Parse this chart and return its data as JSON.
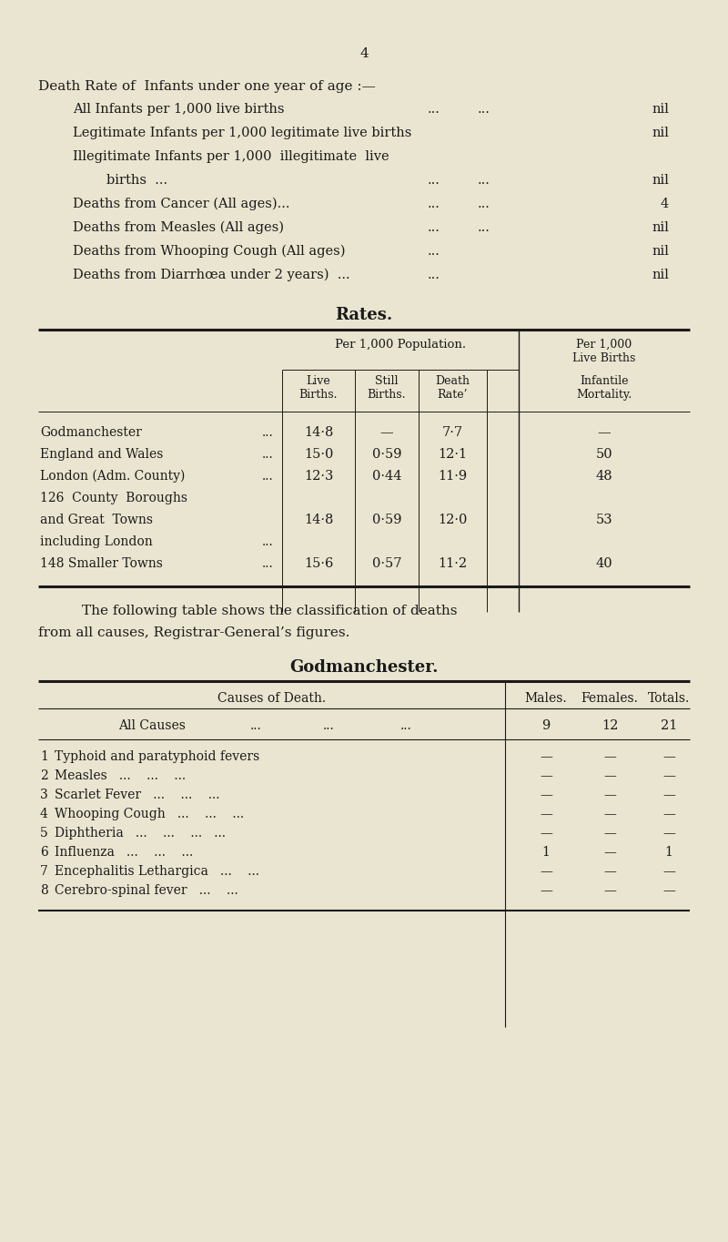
{
  "bg_color": "#EAE5D0",
  "text_color": "#1a1a1a",
  "page_number": "4",
  "section1_title": "Death Rate of  Infants under one year of age :—",
  "rates_title": "Rates.",
  "rates_header1": "Per 1,000 Population.",
  "rates_header2": "Per 1,000\nLive Births",
  "rates_col_headers": [
    "Live\nBirths.",
    "Still\nBirths.",
    "Death\nRate’",
    "Infantile\nMortality."
  ],
  "rates_rows": [
    [
      "Godmanchester",
      "14·8",
      "—",
      "7·7",
      "—"
    ],
    [
      "England and Wales",
      "15·0",
      "0·59",
      "12·1",
      "50"
    ],
    [
      "London (Adm. County)",
      "12·3",
      "0·44",
      "11·9",
      "48"
    ],
    [
      "126  County  Boroughs\nand Great  Towns\nincluding London",
      "14·8",
      "0·59",
      "12·0",
      "53"
    ],
    [
      "148 Smaller Towns",
      "15·6",
      "0·57",
      "11·2",
      "40"
    ]
  ],
  "following_text1": "The following table shows the classification of deaths",
  "following_text2": "from all causes, Registrar-General’s figures.",
  "godmanchester_title": "Godmanchester.",
  "causes_col_header": "Causes of Death.",
  "males_header": "Males.",
  "females_header": "Females.",
  "totals_header": "Totals.",
  "all_causes_label": "All Causes",
  "all_causes_dots": "...         ...         ...",
  "all_causes_m": "9",
  "all_causes_f": "12",
  "all_causes_t": "21"
}
